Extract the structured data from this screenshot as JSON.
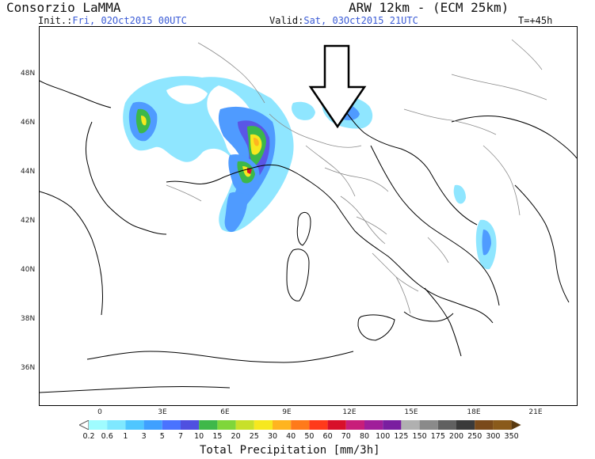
{
  "header": {
    "title_left": "Consorzio LaMMA",
    "title_right": "ARW 12km - (ECM 25km)",
    "init_label": "Init.:",
    "init_value": "Fri, 02Oct2015 00UTC",
    "valid_label": "Valid:",
    "valid_value": "Sat, 03Oct2015 21UTC",
    "step": "T=+45h"
  },
  "map": {
    "lat_labels": [
      "48N",
      "46N",
      "44N",
      "42N",
      "40N",
      "38N",
      "36N"
    ],
    "lon_labels": [
      "0",
      "3E",
      "6E",
      "9E",
      "12E",
      "15E",
      "18E",
      "21E"
    ],
    "annotation": "arrow-down-outline"
  },
  "legend": {
    "title": "Total Precipitation [mm/3h]",
    "labels": [
      "0.2",
      "0.6",
      "1",
      "3",
      "5",
      "7",
      "10",
      "15",
      "20",
      "25",
      "30",
      "40",
      "50",
      "60",
      "70",
      "80",
      "100",
      "125",
      "150",
      "175",
      "200",
      "250",
      "300",
      "350"
    ],
    "colors": [
      "#9ffcff",
      "#7fe8ff",
      "#4fc6ff",
      "#3fa0ff",
      "#4a73ff",
      "#4f50e0",
      "#3fb84a",
      "#7fd63a",
      "#c8e02a",
      "#f6e81f",
      "#ffb41f",
      "#ff7a1a",
      "#ff3a1a",
      "#d8102a",
      "#c81e7a",
      "#a01e9a",
      "#7a1ea0",
      "#b0b0b0",
      "#8a8a8a",
      "#606060",
      "#3a3a3a",
      "#7a4a1a",
      "#8a5a1a",
      "#5a3a10"
    ]
  }
}
